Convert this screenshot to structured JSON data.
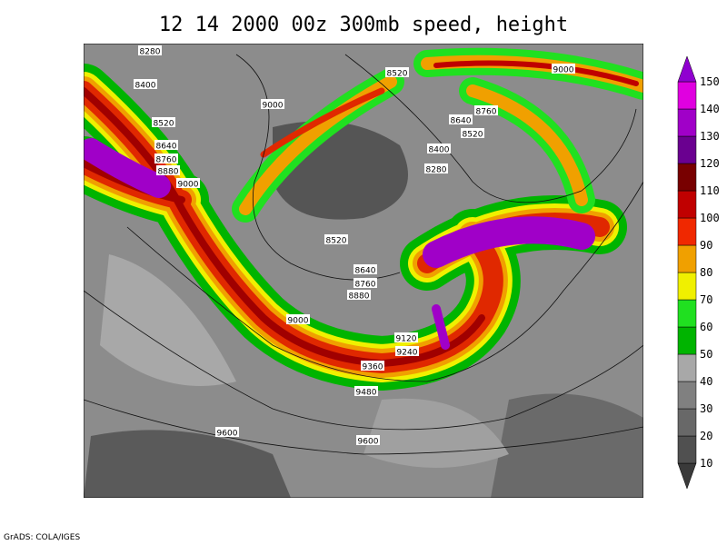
{
  "title": "12 14 2000 00z 300mb speed, height",
  "contour_labels": [
    "8280",
    "8400",
    "9000",
    "8520",
    "8640",
    "8760",
    "8880",
    "9000",
    "8520",
    "9000",
    "8760",
    "8640",
    "8520",
    "8400",
    "8280",
    "8520",
    "8640",
    "8760",
    "8880",
    "9000",
    "9120",
    "9240",
    "9360",
    "9480",
    "9600",
    "9600"
  ],
  "colorbar": {
    "levels": [
      10,
      20,
      30,
      40,
      50,
      60,
      70,
      80,
      90,
      100,
      110,
      120,
      130,
      140,
      150
    ],
    "colors": [
      "#3a3a3a",
      "#505050",
      "#686868",
      "#808080",
      "#a8a8a8",
      "#00b400",
      "#20e020",
      "#f0f000",
      "#f0a000",
      "#f02800",
      "#c00000",
      "#780000",
      "#6a0090",
      "#a000c8",
      "#e000e0",
      "#9000d0"
    ]
  },
  "credit": "GrADS: COLA/IGES"
}
